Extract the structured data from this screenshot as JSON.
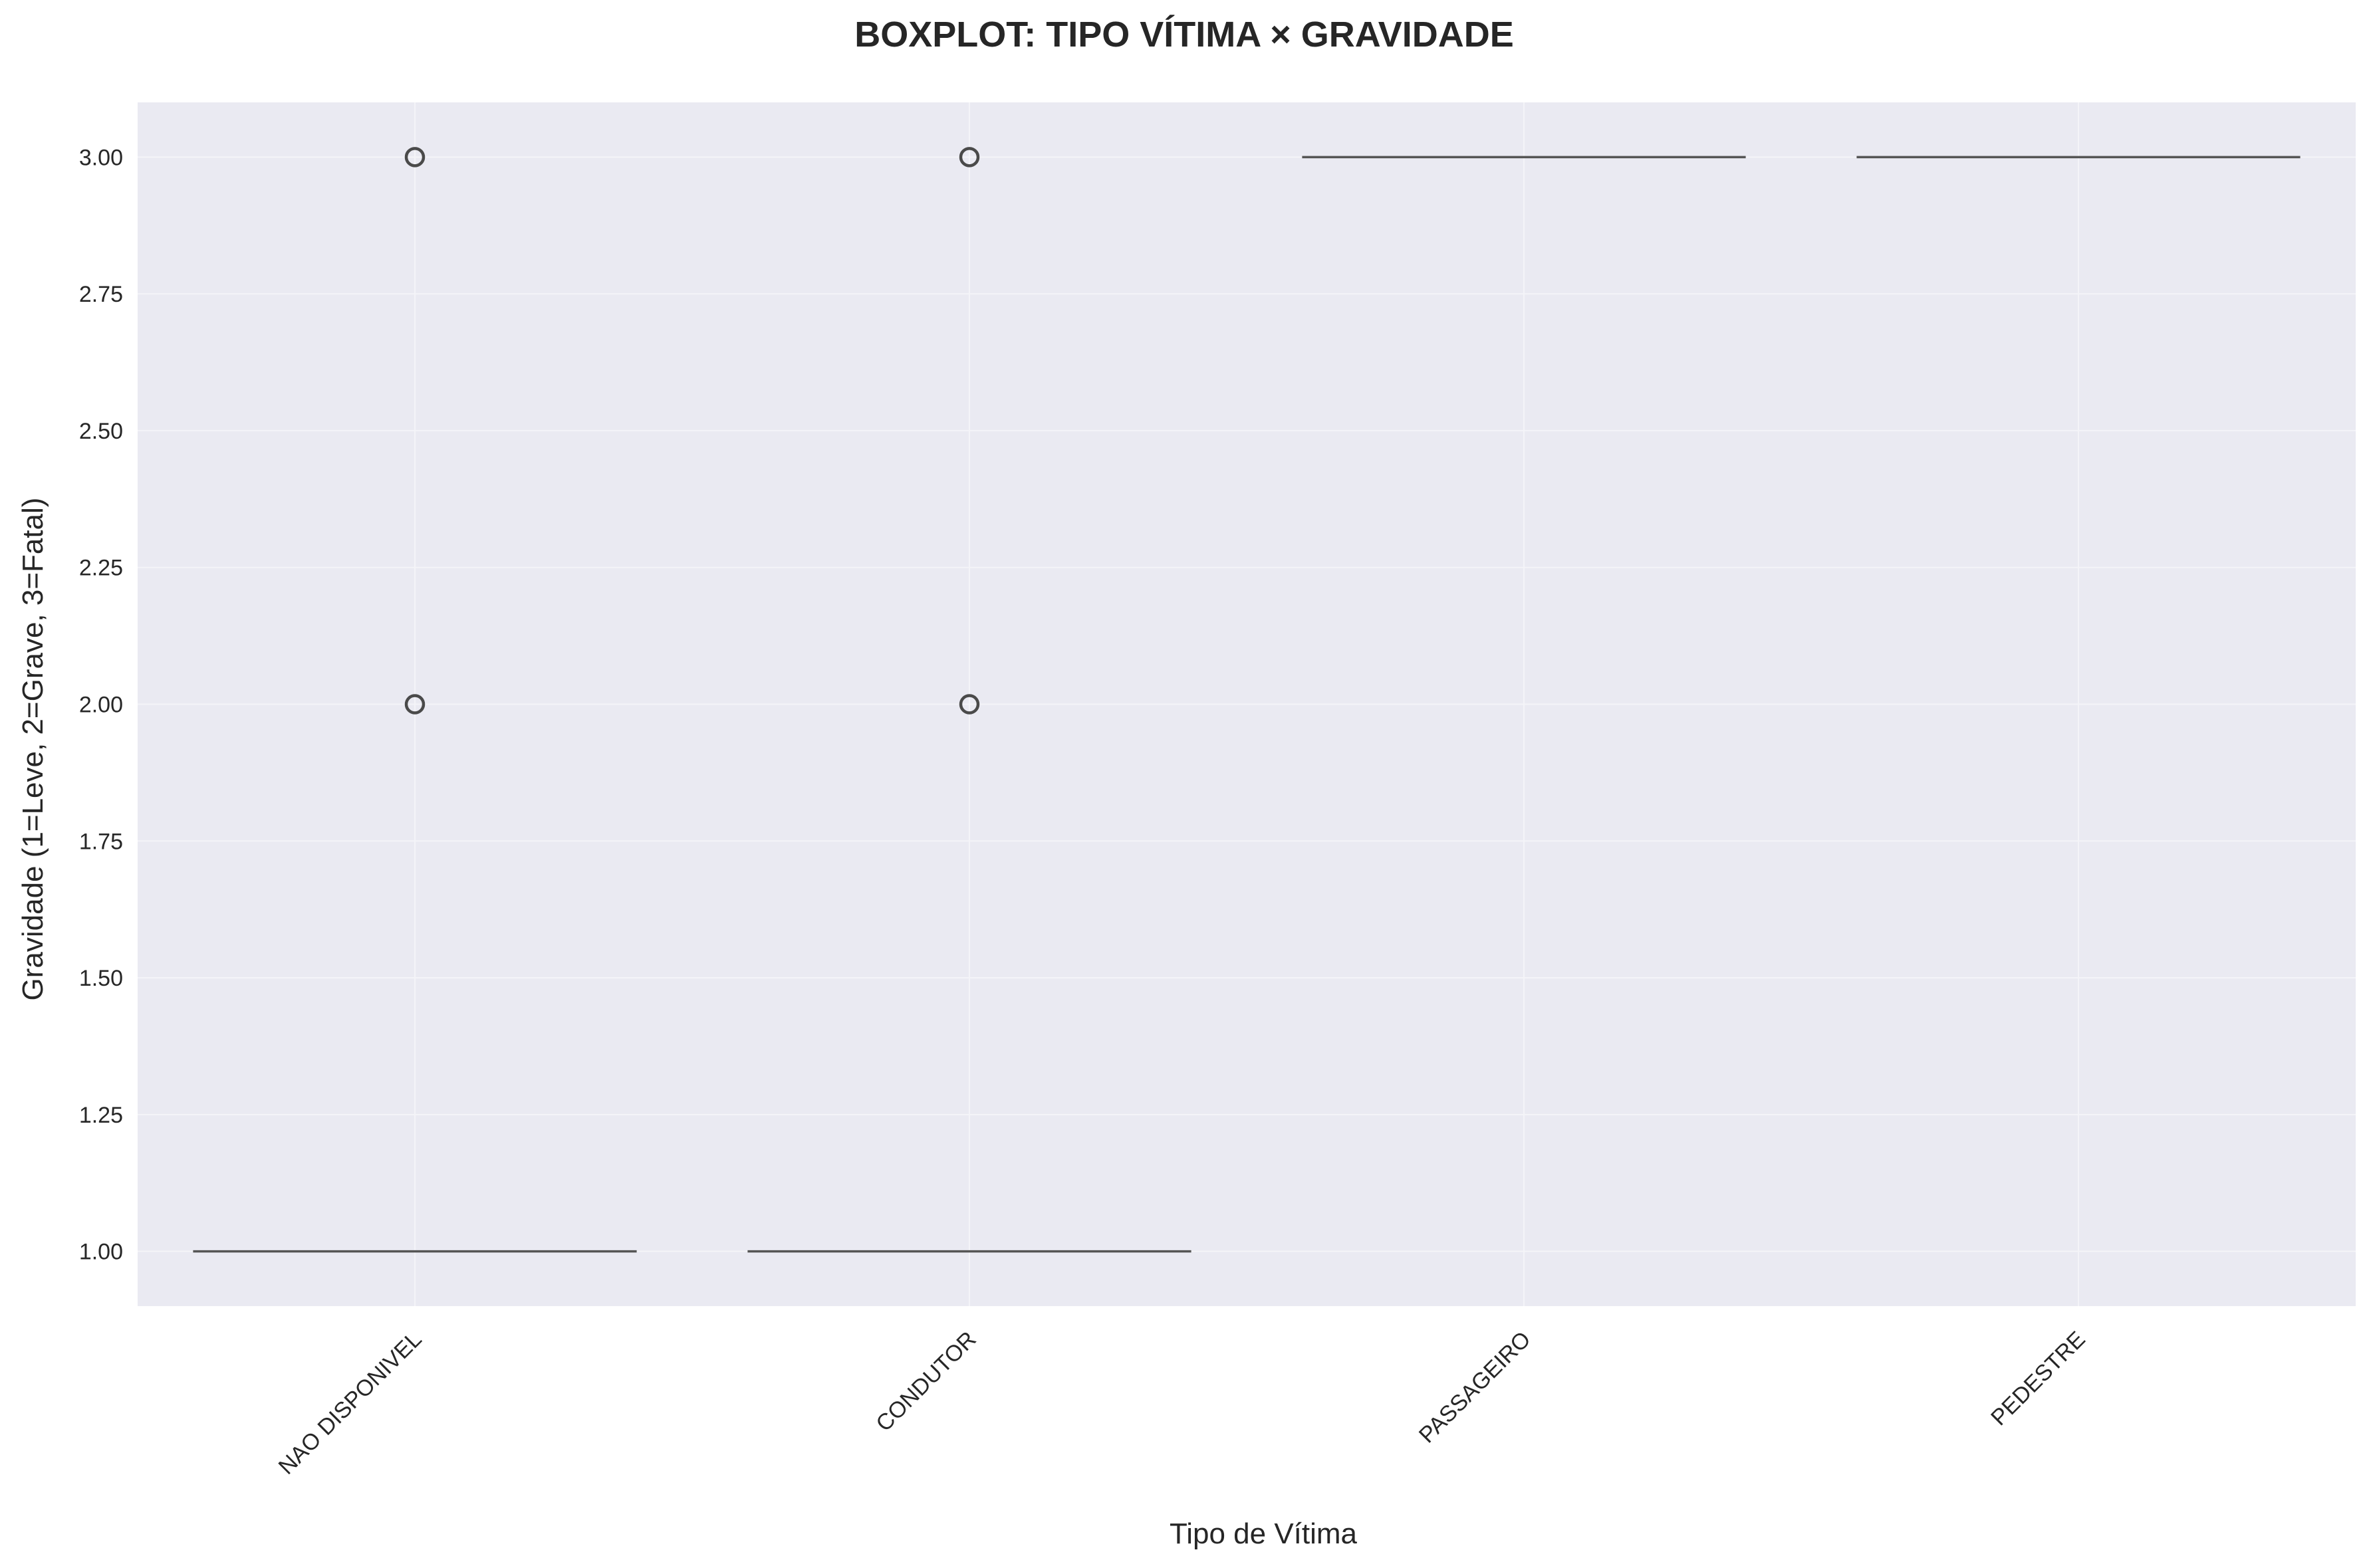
{
  "chart_data": {
    "type": "boxplot",
    "title": "BOXPLOT: TIPO VÍTIMA × GRAVIDADE",
    "xlabel": "Tipo de Vítima",
    "ylabel": "Gravidade (1=Leve, 2=Grave, 3=Fatal)",
    "ylim": [
      0.9,
      3.1
    ],
    "yticks": [
      1.0,
      1.25,
      1.5,
      1.75,
      2.0,
      2.25,
      2.5,
      2.75,
      3.0
    ],
    "ytick_labels": [
      "1.00",
      "1.25",
      "1.50",
      "1.75",
      "2.00",
      "2.25",
      "2.50",
      "2.75",
      "3.00"
    ],
    "categories": [
      "NAO DISPONIVEL",
      "CONDUTOR",
      "PASSAGEIRO",
      "PEDESTRE"
    ],
    "boxes": [
      {
        "category": "NAO DISPONIVEL",
        "min": 1,
        "q1": 1,
        "median": 1,
        "q3": 1,
        "max": 1,
        "outliers": [
          2,
          3
        ]
      },
      {
        "category": "CONDUTOR",
        "min": 1,
        "q1": 1,
        "median": 1,
        "q3": 1,
        "max": 1,
        "outliers": [
          2,
          3
        ]
      },
      {
        "category": "PASSAGEIRO",
        "min": 3,
        "q1": 3,
        "median": 3,
        "q3": 3,
        "max": 3,
        "outliers": []
      },
      {
        "category": "PEDESTRE",
        "min": 3,
        "q1": 3,
        "median": 3,
        "q3": 3,
        "max": 3,
        "outliers": []
      }
    ],
    "grid": true,
    "legend": "none",
    "colors": {
      "plot_background": "#eaeaf2",
      "grid": "#f4f4f8",
      "median_line": "#555555",
      "outlier_edge": "#4a4a4a"
    }
  }
}
